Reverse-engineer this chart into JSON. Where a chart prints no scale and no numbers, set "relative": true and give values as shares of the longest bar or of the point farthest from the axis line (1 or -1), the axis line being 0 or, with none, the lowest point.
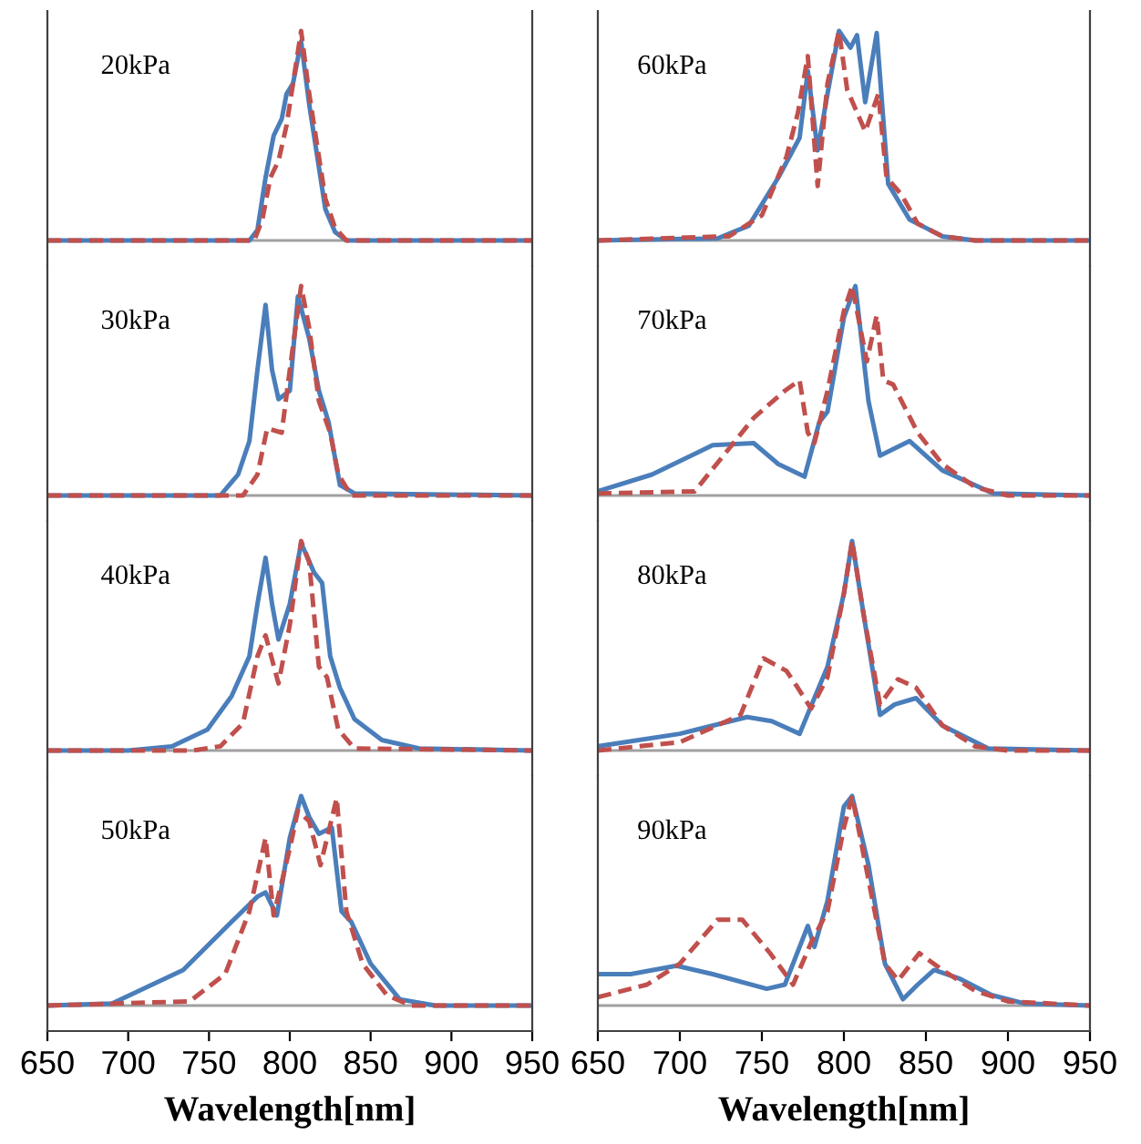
{
  "chart_data": [
    {
      "type": "line",
      "relative": true,
      "xlim": [
        650,
        950
      ],
      "tick_labels": false,
      "annotations": [
        "20kPa"
      ],
      "series": [
        {
          "color": "#4a7ebb",
          "line_style": "solid",
          "x": [
            650,
            775,
            780,
            785,
            790,
            795,
            798,
            802,
            807,
            812,
            817,
            822,
            828,
            835,
            950
          ],
          "values": [
            0,
            0,
            0.05,
            0.3,
            0.5,
            0.58,
            0.7,
            0.75,
            0.95,
            0.65,
            0.4,
            0.15,
            0.04,
            0,
            0
          ]
        },
        {
          "color": "#c0504d",
          "line_style": "dashed",
          "x": [
            650,
            778,
            783,
            788,
            793,
            798,
            802,
            807,
            812,
            817,
            822,
            828,
            835,
            950
          ],
          "values": [
            0,
            0,
            0.1,
            0.3,
            0.38,
            0.55,
            0.75,
            1.0,
            0.7,
            0.45,
            0.2,
            0.06,
            0,
            0
          ]
        }
      ]
    },
    {
      "type": "line",
      "relative": true,
      "xlim": [
        650,
        950
      ],
      "tick_labels": false,
      "annotations": [
        "30kPa"
      ],
      "series": [
        {
          "color": "#4a7ebb",
          "line_style": "solid",
          "x": [
            650,
            757,
            768,
            775,
            780,
            785,
            789,
            793,
            800,
            805,
            812,
            818,
            824,
            831,
            840,
            950
          ],
          "values": [
            0,
            0,
            0.1,
            0.26,
            0.6,
            0.91,
            0.6,
            0.46,
            0.5,
            0.95,
            0.75,
            0.5,
            0.35,
            0.05,
            0.01,
            0
          ]
        },
        {
          "color": "#c0504d",
          "line_style": "dashed",
          "x": [
            650,
            771,
            780,
            786,
            795,
            800,
            807,
            812,
            818,
            825,
            830,
            838,
            950
          ],
          "values": [
            0,
            0,
            0.1,
            0.32,
            0.3,
            0.6,
            1.0,
            0.8,
            0.45,
            0.3,
            0.1,
            0,
            0
          ]
        }
      ]
    },
    {
      "type": "line",
      "relative": true,
      "xlim": [
        650,
        950
      ],
      "tick_labels": false,
      "annotations": [
        "40kPa"
      ],
      "series": [
        {
          "color": "#4a7ebb",
          "line_style": "solid",
          "x": [
            650,
            700,
            727,
            749,
            764,
            775,
            780,
            785,
            789,
            793,
            800,
            807,
            815,
            820,
            825,
            831,
            840,
            857,
            880,
            950
          ],
          "values": [
            0,
            0,
            0.02,
            0.1,
            0.26,
            0.45,
            0.7,
            0.92,
            0.7,
            0.53,
            0.7,
            0.99,
            0.85,
            0.8,
            0.45,
            0.3,
            0.15,
            0.05,
            0.01,
            0
          ]
        },
        {
          "color": "#c0504d",
          "line_style": "dashed",
          "x": [
            650,
            740,
            757,
            771,
            780,
            785,
            793,
            800,
            807,
            812,
            818,
            823,
            830,
            840,
            950
          ],
          "values": [
            0,
            0,
            0.02,
            0.13,
            0.45,
            0.55,
            0.32,
            0.6,
            1.0,
            0.9,
            0.4,
            0.35,
            0.1,
            0.01,
            0
          ]
        }
      ]
    },
    {
      "type": "line",
      "relative": true,
      "xlim": [
        650,
        950
      ],
      "xticks": [
        650,
        700,
        750,
        800,
        850,
        900,
        950
      ],
      "tick_labels": "x",
      "xlabel": "Wavelength[nm]",
      "annotations": [
        "50kPa"
      ],
      "series": [
        {
          "color": "#4a7ebb",
          "line_style": "solid",
          "x": [
            650,
            690,
            734,
            764,
            780,
            785,
            792,
            800,
            807,
            812,
            818,
            826,
            832,
            838,
            850,
            868,
            890,
            950
          ],
          "values": [
            0,
            0.01,
            0.17,
            0.4,
            0.52,
            0.54,
            0.43,
            0.8,
            1.0,
            0.9,
            0.82,
            0.85,
            0.45,
            0.4,
            0.2,
            0.03,
            0,
            0
          ]
        },
        {
          "color": "#c0504d",
          "line_style": "dashed",
          "x": [
            650,
            738,
            760,
            775,
            785,
            790,
            800,
            805,
            812,
            819,
            829,
            835,
            845,
            860,
            875,
            950
          ],
          "values": [
            0,
            0.02,
            0.15,
            0.45,
            0.8,
            0.43,
            0.75,
            0.93,
            0.88,
            0.67,
            0.99,
            0.45,
            0.2,
            0.05,
            0,
            0
          ]
        }
      ]
    },
    {
      "type": "line",
      "relative": true,
      "xlim": [
        650,
        950
      ],
      "tick_labels": false,
      "annotations": [
        "60kPa"
      ],
      "series": [
        {
          "color": "#4a7ebb",
          "line_style": "solid",
          "x": [
            650,
            723,
            742,
            760,
            773,
            778,
            784,
            790,
            797,
            804,
            808,
            813,
            820,
            827,
            840,
            860,
            880,
            950
          ],
          "values": [
            0,
            0.01,
            0.07,
            0.3,
            0.49,
            0.81,
            0.43,
            0.7,
            1.0,
            0.92,
            0.98,
            0.66,
            0.99,
            0.27,
            0.1,
            0.02,
            0,
            0
          ]
        },
        {
          "color": "#c0504d",
          "line_style": "dashed",
          "x": [
            650,
            730,
            750,
            765,
            772,
            778,
            784,
            790,
            797,
            802,
            813,
            821,
            826,
            835,
            845,
            860,
            880,
            950
          ],
          "values": [
            0,
            0.02,
            0.12,
            0.4,
            0.61,
            0.88,
            0.26,
            0.75,
            1.0,
            0.72,
            0.52,
            0.7,
            0.3,
            0.22,
            0.08,
            0.02,
            0,
            0
          ]
        }
      ]
    },
    {
      "type": "line",
      "relative": true,
      "xlim": [
        650,
        950
      ],
      "tick_labels": false,
      "annotations": [
        "70kPa"
      ],
      "series": [
        {
          "color": "#4a7ebb",
          "line_style": "solid",
          "x": [
            650,
            683,
            720,
            745,
            760,
            776,
            785,
            790,
            800,
            807,
            815,
            822,
            840,
            860,
            891,
            950
          ],
          "values": [
            0.02,
            0.1,
            0.24,
            0.25,
            0.15,
            0.09,
            0.35,
            0.4,
            0.85,
            1.0,
            0.45,
            0.19,
            0.26,
            0.12,
            0.01,
            0
          ]
        },
        {
          "color": "#c0504d",
          "line_style": "dashed",
          "x": [
            650,
            709,
            745,
            764,
            773,
            778,
            782,
            790,
            800,
            805,
            814,
            820,
            824,
            830,
            845,
            860,
            880,
            900,
            950
          ],
          "values": [
            0.01,
            0.02,
            0.37,
            0.5,
            0.55,
            0.3,
            0.25,
            0.5,
            0.88,
            1.0,
            0.64,
            0.86,
            0.55,
            0.53,
            0.3,
            0.15,
            0.04,
            0,
            0
          ]
        }
      ]
    },
    {
      "type": "line",
      "relative": true,
      "xlim": [
        650,
        950
      ],
      "tick_labels": false,
      "annotations": [
        "80kPa"
      ],
      "series": [
        {
          "color": "#4a7ebb",
          "line_style": "solid",
          "x": [
            650,
            700,
            741,
            756,
            773,
            782,
            790,
            800,
            805,
            812,
            822,
            831,
            844,
            860,
            888,
            950
          ],
          "values": [
            0.02,
            0.08,
            0.16,
            0.14,
            0.08,
            0.25,
            0.4,
            0.75,
            1.0,
            0.65,
            0.17,
            0.22,
            0.25,
            0.12,
            0.01,
            0
          ]
        },
        {
          "color": "#c0504d",
          "line_style": "dashed",
          "x": [
            650,
            700,
            737,
            751,
            765,
            771,
            780,
            790,
            800,
            805,
            812,
            822,
            833,
            844,
            860,
            880,
            900,
            950
          ],
          "values": [
            0,
            0.04,
            0.17,
            0.44,
            0.38,
            0.31,
            0.2,
            0.35,
            0.75,
            1.0,
            0.65,
            0.22,
            0.34,
            0.3,
            0.12,
            0.02,
            0,
            0
          ]
        }
      ]
    },
    {
      "type": "line",
      "relative": true,
      "xlim": [
        650,
        950
      ],
      "xticks": [
        650,
        700,
        750,
        800,
        850,
        900,
        950
      ],
      "tick_labels": "x",
      "xlabel": "Wavelength[nm]",
      "annotations": [
        "90kPa"
      ],
      "series": [
        {
          "color": "#4a7ebb",
          "line_style": "solid",
          "x": [
            650,
            670,
            698,
            720,
            753,
            764,
            778,
            782,
            790,
            800,
            805,
            815,
            825,
            836,
            845,
            855,
            870,
            890,
            910,
            950
          ],
          "values": [
            0.15,
            0.15,
            0.19,
            0.15,
            0.08,
            0.1,
            0.38,
            0.28,
            0.5,
            0.95,
            1.0,
            0.67,
            0.2,
            0.03,
            0.1,
            0.17,
            0.13,
            0.05,
            0.01,
            0
          ]
        },
        {
          "color": "#c0504d",
          "line_style": "dashed",
          "x": [
            650,
            680,
            700,
            723,
            738,
            755,
            769,
            780,
            790,
            800,
            805,
            815,
            825,
            833,
            846,
            860,
            880,
            900,
            950
          ],
          "values": [
            0.04,
            0.1,
            0.2,
            0.41,
            0.41,
            0.25,
            0.1,
            0.3,
            0.45,
            0.85,
            1.0,
            0.6,
            0.2,
            0.12,
            0.25,
            0.17,
            0.07,
            0.02,
            0
          ]
        }
      ]
    }
  ]
}
